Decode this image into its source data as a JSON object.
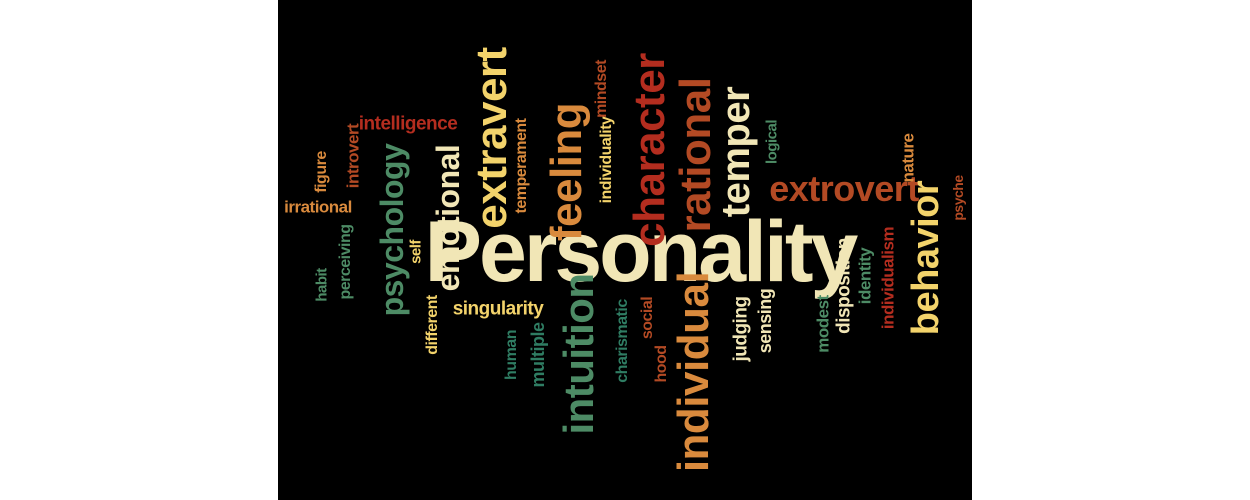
{
  "colors": {
    "background": "#000000",
    "frame": "#ffffff",
    "cream": "#f1e6b6",
    "yellow": "#f3d36b",
    "orange": "#d98a3d",
    "rust": "#b34a24",
    "red": "#b42d1f",
    "green": "#4d8b65",
    "teal": "#2f7d63"
  },
  "words": {
    "personality": "Personality",
    "extravert": "extravert",
    "extrovert": "extrovert",
    "character": "character",
    "rational": "rational",
    "temper": "temper",
    "feeling": "feeling",
    "emotional": "emotional",
    "psychology": "psychology",
    "intuition": "intuition",
    "individual": "individual",
    "behavior": "behavior",
    "intelligence": "intelligence",
    "introvert": "introvert",
    "figure": "figure",
    "irrational": "irrational",
    "perceiving": "perceiving",
    "habit": "habit",
    "self": "self",
    "different": "different",
    "singularity": "singularity",
    "human": "human",
    "multiple": "multiple",
    "charismatic": "charismatic",
    "social": "social",
    "hood": "hood",
    "temperament": "temperament",
    "individuality": "individuality",
    "mindset": "mindset",
    "judging": "judging",
    "sensing": "sensing",
    "logical": "logical",
    "modest": "modest",
    "disposition": "disposition",
    "identity": "identity",
    "individualism": "individualism",
    "nature": "nature",
    "psyche": "psyche"
  }
}
